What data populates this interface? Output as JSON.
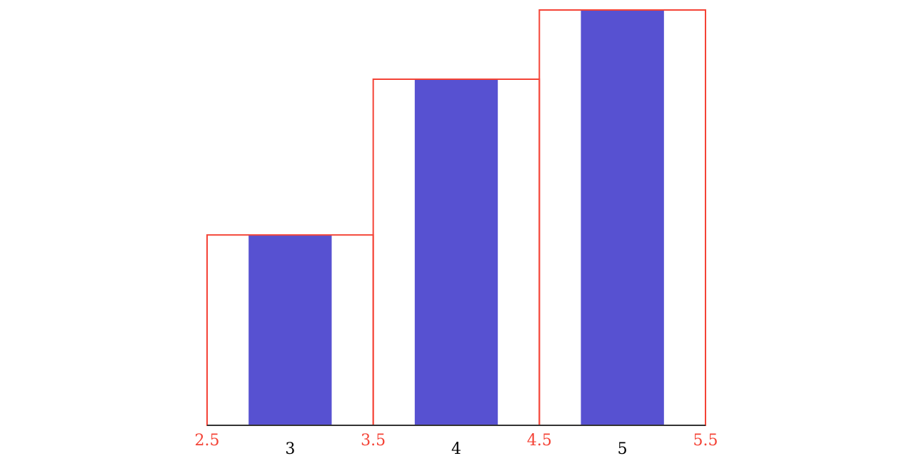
{
  "chart_data": {
    "type": "histogram",
    "x": [
      3,
      4,
      5
    ],
    "bins": [
      2.5,
      3.5,
      4.5,
      5.5
    ],
    "values": [
      5.5,
      10,
      12
    ],
    "color": "#5751d1",
    "edge_color": "#f44336",
    "xlim": [
      2.5,
      5.5
    ],
    "ylim": [
      0,
      12
    ]
  }
}
